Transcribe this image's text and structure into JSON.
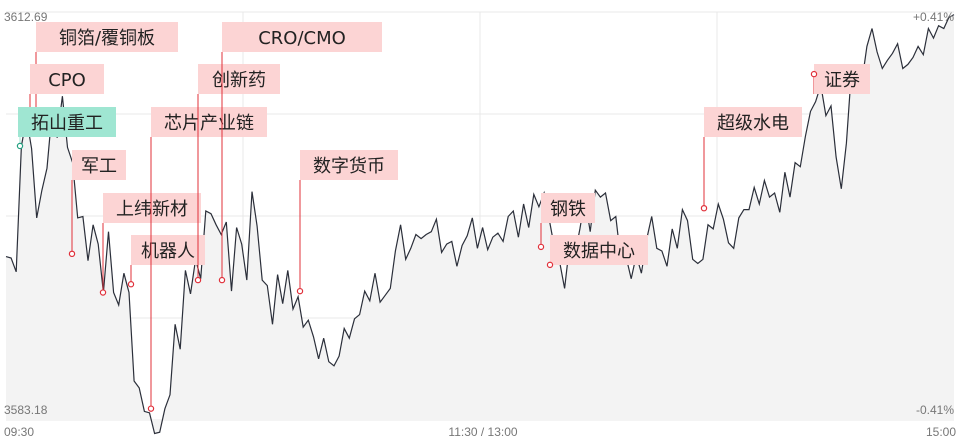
{
  "chart_data": {
    "type": "line",
    "y_top_label": "3612.69",
    "y_bottom_label": "3583.18",
    "pct_top_label": "+0.41%",
    "pct_bottom_label": "-0.41%",
    "ylim": [
      3583.18,
      3612.69
    ],
    "x_tick_labels": [
      "09:30",
      "11:30 / 13:00",
      "15:00"
    ],
    "grid": true,
    "colors": {
      "line": "#2b2f3a",
      "tag_bg": "#fcd4d4",
      "tag_bg_green": "#9fe6d2",
      "marker": "#e0303a",
      "pct_up": "#e0303a",
      "pct_down": "#22a080",
      "grid": "#e8e8e8"
    },
    "series": [
      {
        "values": [
          3595.0,
          3594.9,
          3593.9,
          3603.0,
          3605.0,
          3602.8,
          3597.8,
          3599.8,
          3601.4,
          3605.5,
          3603.6,
          3606.6,
          3602.9,
          3601.8,
          3597.8,
          3597.9,
          3594.7,
          3597.3,
          3595.9,
          3592.4,
          3596.8,
          3592.4,
          3591.5,
          3593.8,
          3592.4,
          3586.0,
          3585.5,
          3583.8,
          3583.7,
          3582.2,
          3582.3,
          3584.0,
          3585.0,
          3590.1,
          3588.3,
          3594.0,
          3592.3,
          3594.8,
          3593.4,
          3598.3,
          3598.1,
          3597.3,
          3596.6,
          3597.5,
          3592.5,
          3597.1,
          3595.9,
          3593.3,
          3599.7,
          3597.2,
          3593.3,
          3592.9,
          3590.1,
          3593.7,
          3591.6,
          3594.0,
          3591.2,
          3592.1,
          3589.9,
          3590.4,
          3589.2,
          3587.6,
          3589.1,
          3587.4,
          3587.1,
          3587.8,
          3589.8,
          3589.1,
          3590.5,
          3590.8,
          3592.5,
          3591.8,
          3593.8,
          3591.7,
          3592.2,
          3592.7,
          3595.4,
          3597.3,
          3594.8,
          3595.6,
          3596.6,
          3596.3,
          3596.6,
          3596.8,
          3597.7,
          3595.3,
          3595.9,
          3596.1,
          3594.3,
          3595.8,
          3596.5,
          3597.8,
          3595.6,
          3597.1,
          3595.5,
          3596.4,
          3596.7,
          3596.1,
          3597.9,
          3598.3,
          3596.4,
          3598.8,
          3597.1,
          3599.5,
          3598.6,
          3599.6,
          3597.7,
          3595.7,
          3594.7,
          3592.7,
          3595.9,
          3595.1,
          3597.0,
          3599.2,
          3596.8,
          3599.8,
          3599.3,
          3599.6,
          3597.6,
          3597.9,
          3594.7,
          3595.0,
          3593.4,
          3595.1,
          3593.8,
          3596.2,
          3597.9,
          3595.6,
          3595.4,
          3594.3,
          3597.0,
          3595.6,
          3598.4,
          3597.6,
          3594.8,
          3594.5,
          3594.8,
          3597.3,
          3597.0,
          3598.8,
          3597.7,
          3596.0,
          3595.6,
          3597.8,
          3598.4,
          3598.4,
          3600.0,
          3598.8,
          3600.5,
          3599.3,
          3599.6,
          3598.2,
          3601.1,
          3599.3,
          3601.8,
          3601.5,
          3603.7,
          3605.5,
          3606.2,
          3607.4,
          3605.2,
          3605.9,
          3602.2,
          3599.9,
          3603.2,
          3608.5,
          3607.3,
          3607.6,
          3610.2,
          3611.5,
          3609.8,
          3608.6,
          3609.2,
          3609.7,
          3610.4,
          3608.6,
          3608.9,
          3609.4,
          3610.2,
          3609.6,
          3611.5,
          3610.8,
          3611.7,
          3611.5,
          3612.3,
          3612.5
        ]
      }
    ],
    "annotations": [
      {
        "label": "铜箔/覆铜板",
        "value": 3605.5,
        "style": "red"
      },
      {
        "label": "CPO",
        "value": 3605.4,
        "style": "red"
      },
      {
        "label": "拓山重工",
        "value": 3603.0,
        "style": "green"
      },
      {
        "label": "军工",
        "value": 3595.2,
        "style": "red"
      },
      {
        "label": "上纬新材",
        "value": 3592.4,
        "style": "red"
      },
      {
        "label": "机器人",
        "value": 3593.0,
        "style": "red"
      },
      {
        "label": "芯片产业链",
        "value": 3584.0,
        "style": "red"
      },
      {
        "label": "创新药",
        "value": 3593.3,
        "style": "red"
      },
      {
        "label": "CRO/CMO",
        "value": 3593.3,
        "style": "red"
      },
      {
        "label": "数字货币",
        "value": 3592.5,
        "style": "red"
      },
      {
        "label": "钢铁",
        "value": 3595.7,
        "style": "red"
      },
      {
        "label": "数据中心",
        "value": 3594.4,
        "style": "red"
      },
      {
        "label": "超级水电",
        "value": 3598.5,
        "style": "red"
      },
      {
        "label": "证券",
        "value": 3608.2,
        "style": "red"
      }
    ]
  }
}
